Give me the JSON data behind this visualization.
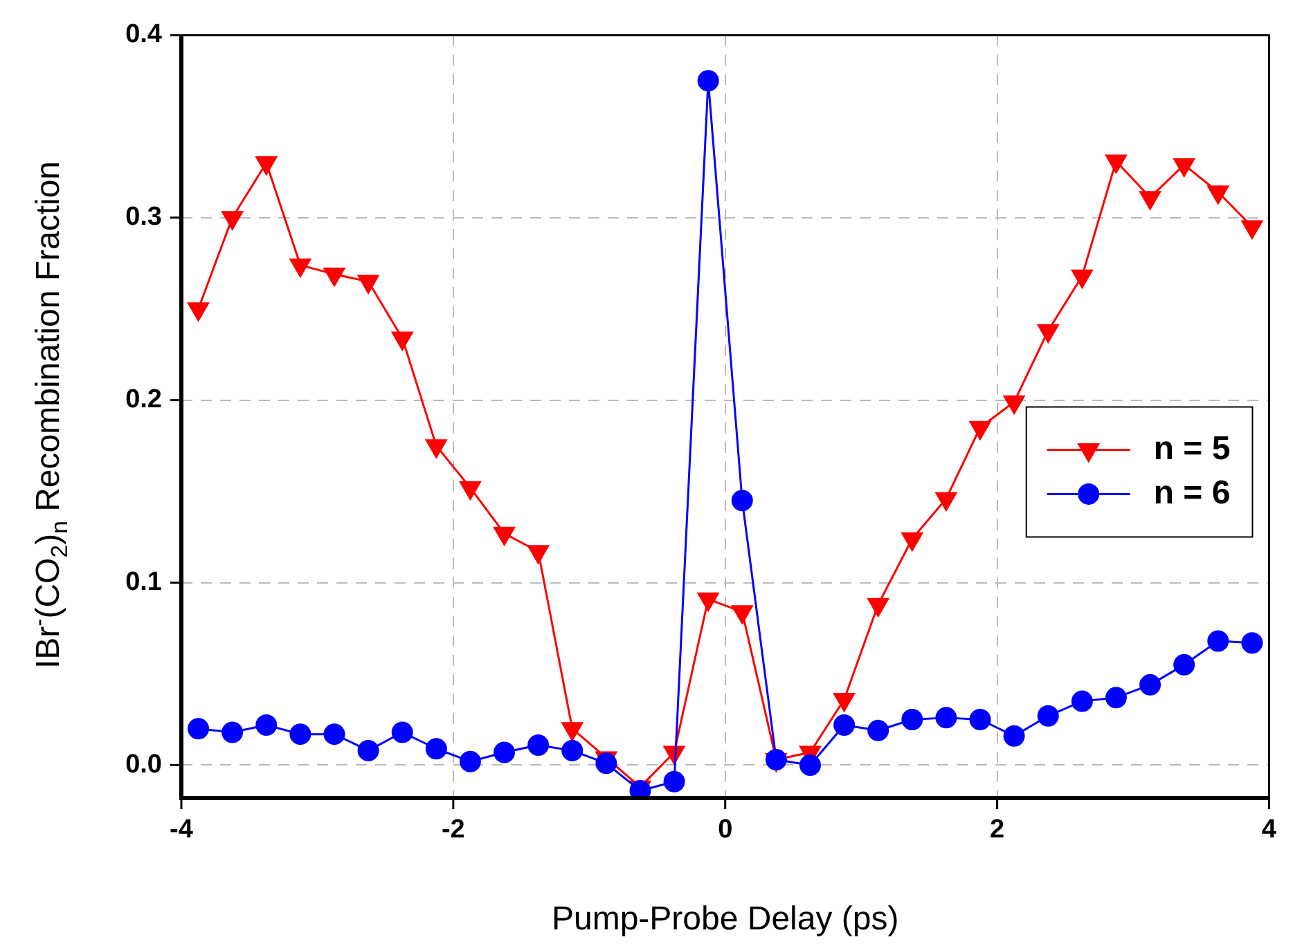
{
  "chart_data": {
    "type": "line",
    "xlabel": "Pump-Probe Delay (ps)",
    "ylabel": "IBr$^{-}$(CO$_{2}$)$_{n}$ Recombination Fraction",
    "x": [
      -3.875,
      -3.625,
      -3.375,
      -3.125,
      -2.875,
      -2.625,
      -2.375,
      -2.125,
      -1.875,
      -1.625,
      -1.375,
      -1.125,
      -0.875,
      -0.625,
      -0.375,
      -0.125,
      0.125,
      0.375,
      0.625,
      0.875,
      1.125,
      1.375,
      1.625,
      1.875,
      2.125,
      2.375,
      2.625,
      2.875,
      3.125,
      3.375,
      3.625,
      3.875
    ],
    "series": [
      {
        "name": "n = 5",
        "color": "#ff0000",
        "marker": "triangle",
        "values": [
          0.25,
          0.3,
          0.33,
          0.274,
          0.269,
          0.265,
          0.234,
          0.175,
          0.152,
          0.127,
          0.117,
          0.02,
          0.004,
          -0.012,
          0.007,
          0.091,
          0.084,
          0.003,
          0.007,
          0.036,
          0.088,
          0.124,
          0.146,
          0.185,
          0.199,
          0.238,
          0.268,
          0.331,
          0.311,
          0.329,
          0.314,
          0.295
        ]
      },
      {
        "name": "n = 6",
        "color": "#0000ff",
        "marker": "circle",
        "values": [
          0.02,
          0.018,
          0.022,
          0.017,
          0.017,
          0.008,
          0.018,
          0.009,
          0.002,
          0.007,
          0.011,
          0.008,
          0.001,
          -0.014,
          -0.009,
          0.375,
          0.145,
          0.003,
          0.0,
          0.022,
          0.019,
          0.025,
          0.026,
          0.025,
          0.016,
          0.027,
          0.035,
          0.037,
          0.044,
          0.055,
          0.068,
          0.067
        ]
      }
    ],
    "xlim": [
      -4,
      4
    ],
    "xticks": [
      -4,
      -2,
      0,
      2,
      4
    ],
    "ylim": [
      -0.018,
      0.4
    ],
    "yticks": [
      {
        "value": 0,
        "label": "0.0"
      },
      0.1,
      0.2,
      0.3,
      0.4
    ],
    "grid": true,
    "legend": "right",
    "line_style": "solid"
  }
}
